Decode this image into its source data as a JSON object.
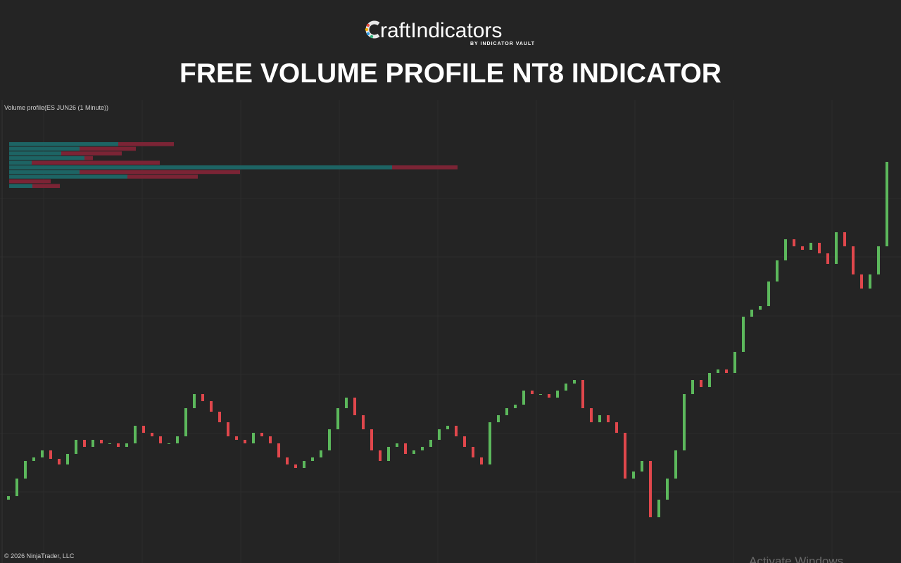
{
  "header": {
    "logo_text": "raftIndicators",
    "logo_sub": "BY INDICATOR VAULT",
    "title": "FREE VOLUME PROFILE NT8 INDICATOR"
  },
  "chart_data": {
    "type": "candlestick",
    "title": "Volume profile(ES JUN26 (1 Minute))",
    "open": [
      9,
      9.5,
      12,
      14.5,
      15,
      16,
      14.8,
      14,
      15.5,
      17.5,
      16.5,
      17.5,
      17,
      17,
      16.5,
      17,
      19.5,
      18.5,
      18,
      17,
      17,
      18,
      22,
      24,
      23,
      21.5,
      20,
      18,
      17.5,
      17,
      18.5,
      18,
      17,
      15,
      14,
      13.5,
      14.5,
      15,
      16,
      19,
      22,
      23.5,
      21,
      19,
      16,
      14.5,
      16.5,
      17,
      15.5,
      16,
      16.5,
      17.5,
      19,
      19.5,
      18,
      16.5,
      15,
      14,
      20,
      21,
      22,
      22.5,
      24.5,
      24,
      24,
      23.5,
      24.5,
      25.5,
      26,
      22,
      20,
      21,
      20,
      18.5,
      12,
      13,
      14.5,
      6.5,
      9,
      12,
      16,
      24,
      26,
      25,
      27,
      27.5,
      27,
      30,
      35,
      36,
      36.5,
      40,
      43,
      46,
      45,
      44.5,
      45.5,
      44,
      42.5,
      47,
      45,
      41,
      39,
      41,
      45
    ],
    "close": [
      9.5,
      12,
      14.5,
      15,
      16,
      14.8,
      14,
      15.5,
      17.5,
      16.5,
      17.5,
      17,
      17,
      16.5,
      17,
      19.5,
      18.5,
      18,
      17,
      17,
      18,
      22,
      24,
      23,
      21.5,
      20,
      18,
      17.5,
      17,
      18.5,
      18,
      17,
      15,
      14,
      13.5,
      14.5,
      15,
      16,
      19,
      22,
      23.5,
      21,
      19,
      16,
      14.5,
      16.5,
      17,
      15.5,
      16,
      16.5,
      17.5,
      19,
      19.5,
      18,
      16.5,
      15,
      14,
      20,
      21,
      22,
      22.5,
      24.5,
      24,
      24,
      23.5,
      24.5,
      25.5,
      26,
      22,
      20,
      21,
      20,
      18.5,
      12,
      13,
      14.5,
      6.5,
      9,
      12,
      16,
      24,
      26,
      25,
      27,
      27.5,
      27,
      30,
      35,
      36,
      36.5,
      40,
      43,
      46,
      45,
      44.5,
      45.5,
      44,
      42.5,
      47,
      45,
      41,
      39,
      41,
      45,
      57
    ],
    "ylim": [
      0,
      66
    ],
    "up_color": "#5cb85c",
    "down_color": "#e0474c",
    "profile": {
      "buy": [
        155,
        100,
        74,
        107,
        32,
        544,
        100,
        168,
        0,
        33
      ],
      "sell": [
        79,
        80,
        86,
        12,
        182,
        93,
        228,
        100,
        59,
        39
      ],
      "buy_color": "#1d6464",
      "sell_color": "#7b2435",
      "xlim": [
        0,
        640
      ]
    }
  },
  "footer": {
    "copyright": "© 2026 NinjaTrader, LLC",
    "watermark": "Activate Windows"
  }
}
